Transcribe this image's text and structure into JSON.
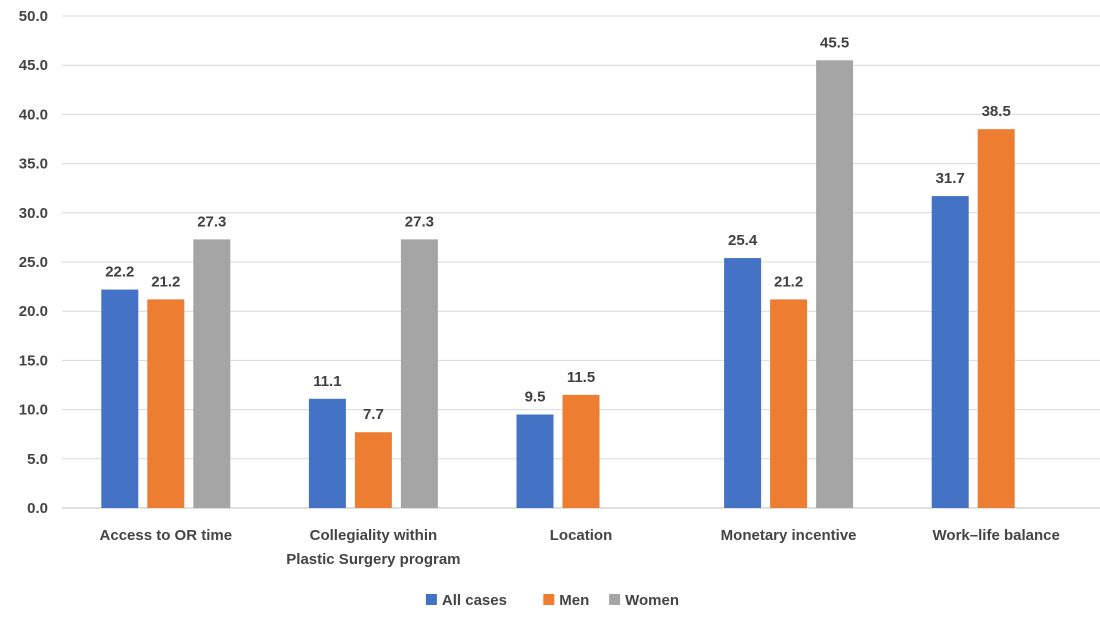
{
  "chart_data": {
    "type": "bar",
    "title": "",
    "xlabel": "",
    "ylabel": "",
    "categories": [
      [
        "Access to OR time"
      ],
      [
        "Collegiality within",
        "Plastic Surgery program"
      ],
      [
        "Location"
      ],
      [
        "Monetary incentive"
      ],
      [
        "Work–life balance"
      ]
    ],
    "series": [
      {
        "name": "All cases",
        "color": "#4472C4",
        "values": [
          22.2,
          11.1,
          9.5,
          25.4,
          31.7
        ]
      },
      {
        "name": "Men",
        "color": "#ED7D31",
        "values": [
          21.2,
          7.7,
          11.5,
          21.2,
          38.5
        ]
      },
      {
        "name": "Women",
        "color": "#A5A5A5",
        "values": [
          27.3,
          27.3,
          null,
          45.5,
          null
        ]
      }
    ],
    "ylim": [
      0,
      50
    ],
    "ytick_step": 5,
    "ytick_format_decimals": 1,
    "grid": true,
    "legend_position": "bottom"
  }
}
